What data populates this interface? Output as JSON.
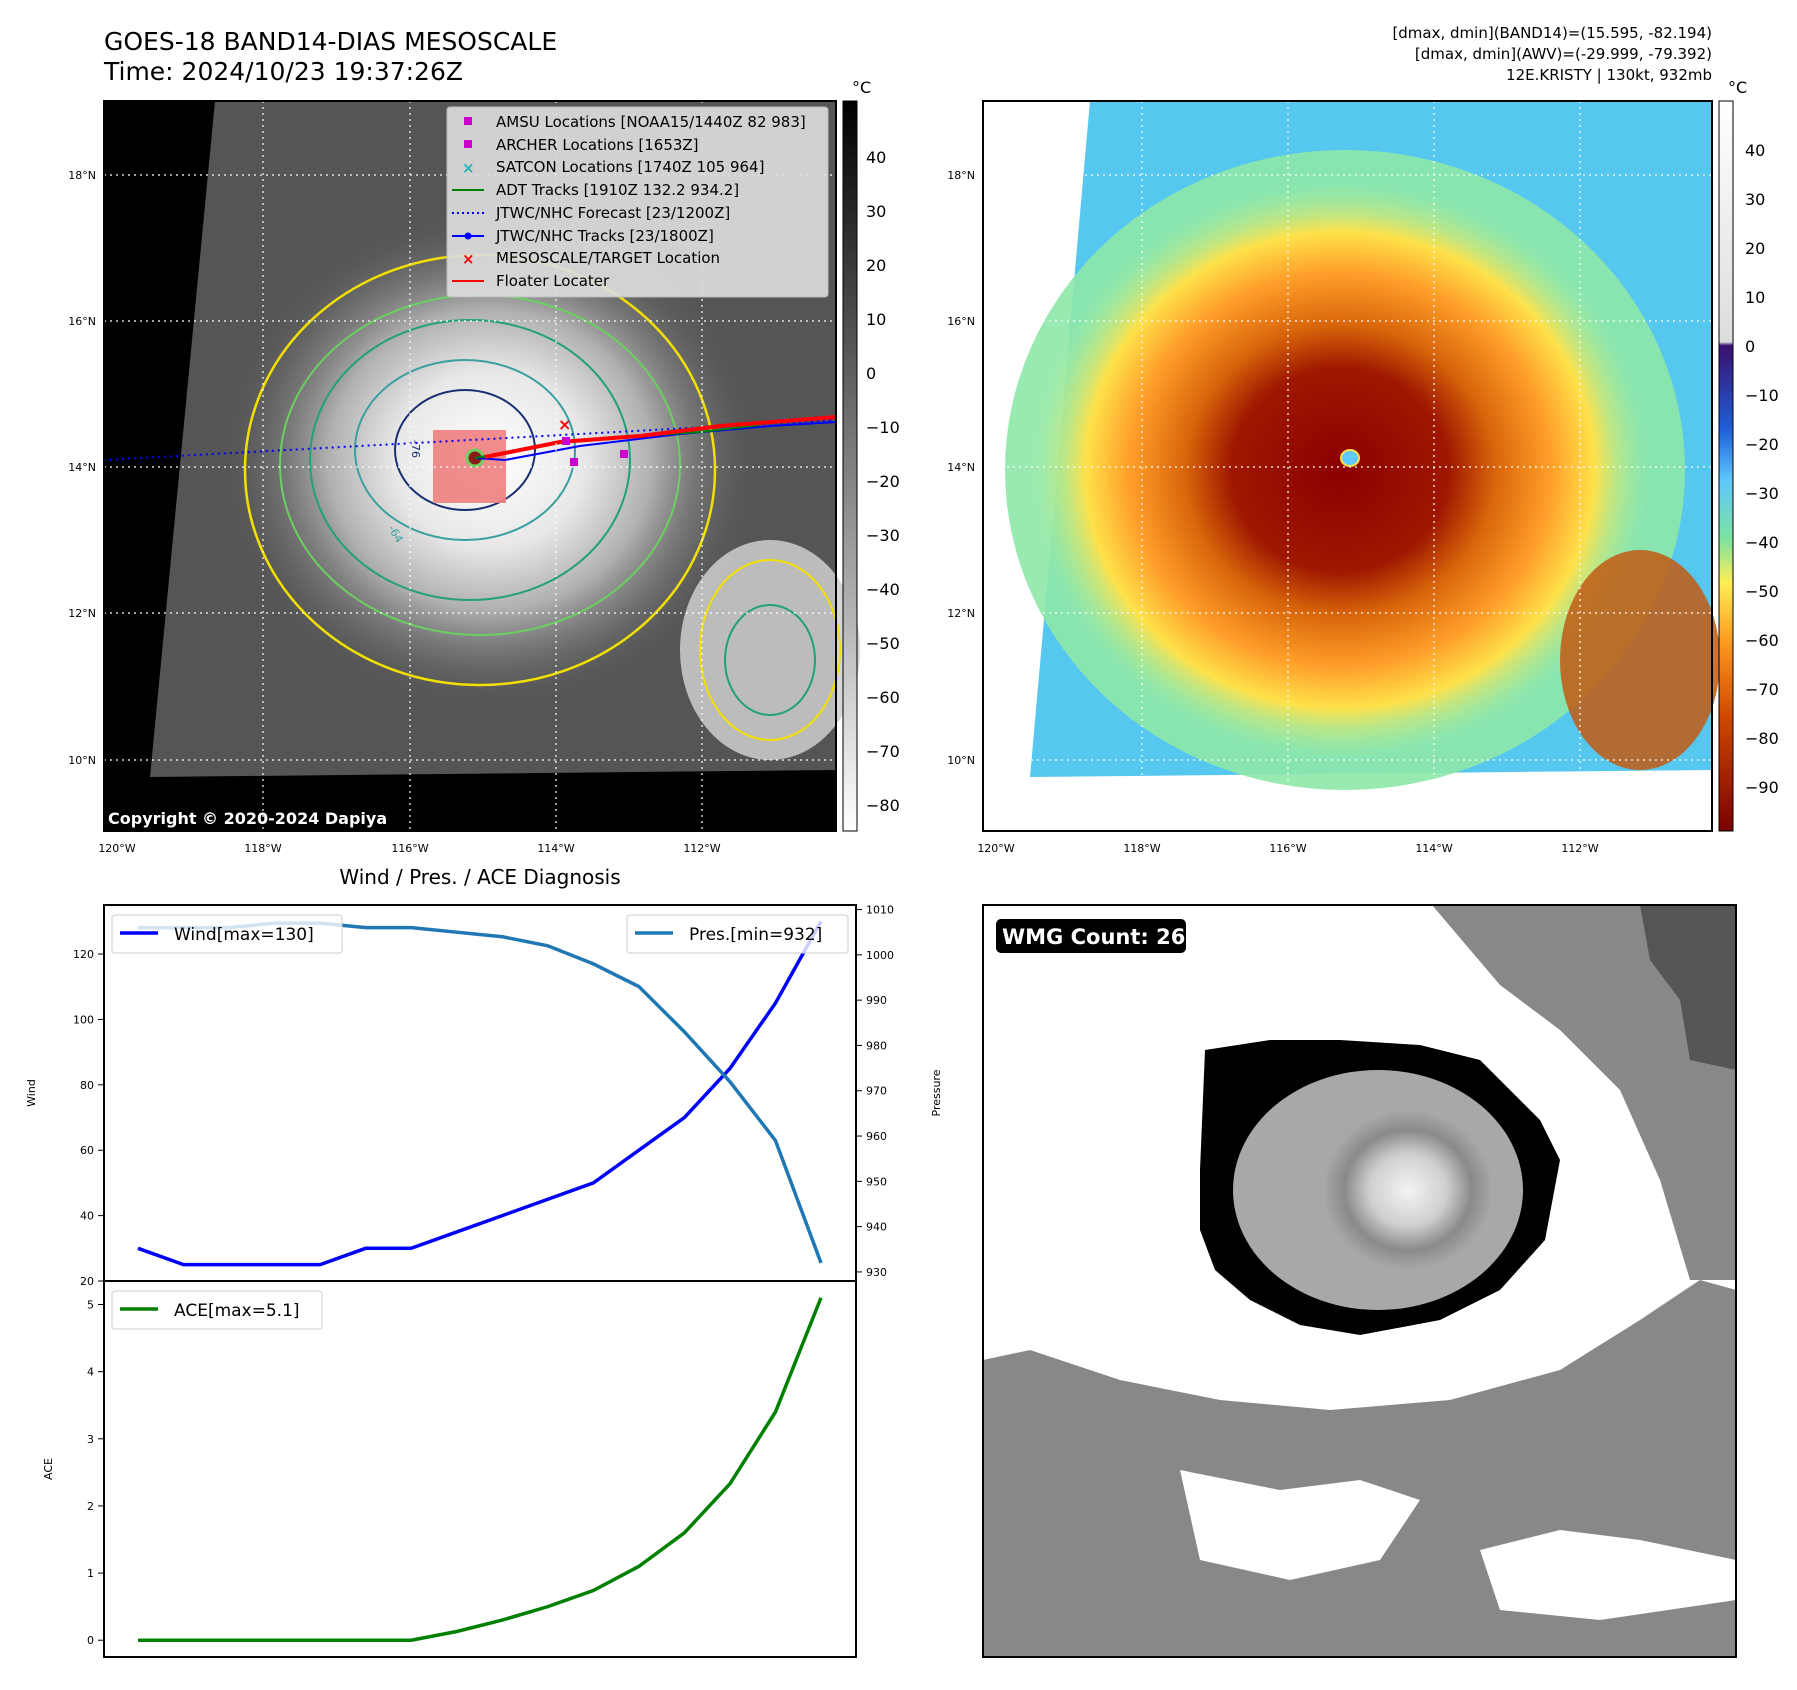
{
  "header": {
    "title_line1": "GOES-18 BAND14-DIAS MESOSCALE",
    "title_line2": "Time: 2024/10/23 19:37:26Z",
    "info_line1": "[dmax, dmin](BAND14)=(15.595, -82.194)",
    "info_line2": "[dmax, dmin](AWV)=(-29.999, -79.392)",
    "info_line3": "12E.KRISTY | 130kt, 932mb"
  },
  "maps": {
    "lat_ticks": [
      "18°N",
      "16°N",
      "14°N",
      "12°N",
      "10°N"
    ],
    "lon_ticks": [
      "120°W",
      "118°W",
      "116°W",
      "114°W",
      "112°W"
    ],
    "copyright": "Copyright © 2020-2024 Dapiya",
    "contour_labels": [
      "-76",
      "-64"
    ],
    "colors": {
      "background": "#000000",
      "legend_bg": "#dcdcdc",
      "floater_box": "#f08080"
    }
  },
  "left_colorbar": {
    "unit": "°C",
    "ticks": [
      "40",
      "30",
      "20",
      "10",
      "0",
      "−10",
      "−20",
      "−30",
      "−40",
      "−50",
      "−60",
      "−70",
      "−80"
    ]
  },
  "right_colorbar": {
    "unit": "°C",
    "ticks": [
      "40",
      "30",
      "20",
      "10",
      "0",
      "−10",
      "−20",
      "−30",
      "−40",
      "−50",
      "−60",
      "−70",
      "−80",
      "−90"
    ]
  },
  "legend": {
    "items": [
      {
        "label": "AMSU Locations [NOAA15/1440Z 82 983]",
        "symbol": "square",
        "color": "#cc00cc"
      },
      {
        "label": "ARCHER Locations [1653Z]",
        "symbol": "square",
        "color": "#cc00cc"
      },
      {
        "label": "SATCON Locations [1740Z 105 964]",
        "symbol": "x",
        "color": "#1fb5b5"
      },
      {
        "label": "ADT Tracks [1910Z 132.2 934.2]",
        "symbol": "line",
        "color": "#008000"
      },
      {
        "label": "JTWC/NHC Forecast [23/1200Z]",
        "symbol": "dotted",
        "color": "#0000ff"
      },
      {
        "label": "JTWC/NHC Tracks [23/1800Z]",
        "symbol": "line-dot",
        "color": "#0000ff"
      },
      {
        "label": "MESOSCALE/TARGET Location",
        "symbol": "x",
        "color": "#ff0000"
      },
      {
        "label": "Floater Locater",
        "symbol": "line",
        "color": "#ff0000"
      }
    ]
  },
  "diagnosis": {
    "title": "Wind / Pres. / ACE Diagnosis",
    "wind_label": "Wind",
    "pressure_label": "Pressure",
    "ace_label": "ACE",
    "wind_legend": "Wind[max=130]",
    "pres_legend": "Pres.[min=932]",
    "ace_legend": "ACE[max=5.1]",
    "wind_ticks": [
      "120",
      "100",
      "80",
      "60",
      "40",
      "20"
    ],
    "pres_ticks": [
      "1010",
      "1000",
      "990",
      "980",
      "970",
      "960",
      "950",
      "940",
      "930"
    ],
    "ace_ticks": [
      "5",
      "4",
      "3",
      "2",
      "1",
      "0"
    ]
  },
  "wmg": {
    "badge": "WMG Count: 26"
  },
  "chart_data": [
    {
      "type": "line",
      "x": [
        0,
        1,
        2,
        3,
        4,
        5,
        6,
        7,
        8,
        9,
        10,
        11,
        12,
        13,
        14,
        15
      ],
      "series": [
        {
          "name": "Wind[max=130]",
          "axis": "left",
          "color": "#0000ff",
          "values": [
            30,
            25,
            25,
            25,
            25,
            30,
            30,
            35,
            40,
            45,
            50,
            60,
            70,
            85,
            105,
            130
          ]
        },
        {
          "name": "Pres.[min=932]",
          "axis": "right",
          "color": "#1f77b4",
          "values": [
            1006,
            1006,
            1006,
            1007,
            1007,
            1006,
            1006,
            1005,
            1004,
            1002,
            998,
            993,
            983,
            972,
            959,
            932
          ]
        }
      ],
      "xlabel": "",
      "ylabel": "Wind",
      "y2label": "Pressure",
      "ylim": [
        20,
        135
      ],
      "y2lim": [
        928,
        1011
      ]
    },
    {
      "type": "line",
      "x": [
        0,
        1,
        2,
        3,
        4,
        5,
        6,
        7,
        8,
        9,
        10,
        11,
        12,
        13,
        14,
        15
      ],
      "series": [
        {
          "name": "ACE[max=5.1]",
          "color": "#008000",
          "values": [
            0,
            0,
            0,
            0,
            0,
            0,
            0,
            0.13,
            0.3,
            0.5,
            0.74,
            1.1,
            1.6,
            2.33,
            3.4,
            5.1
          ]
        }
      ],
      "xlabel": "",
      "ylabel": "ACE",
      "ylim": [
        -0.25,
        5.35
      ]
    }
  ]
}
